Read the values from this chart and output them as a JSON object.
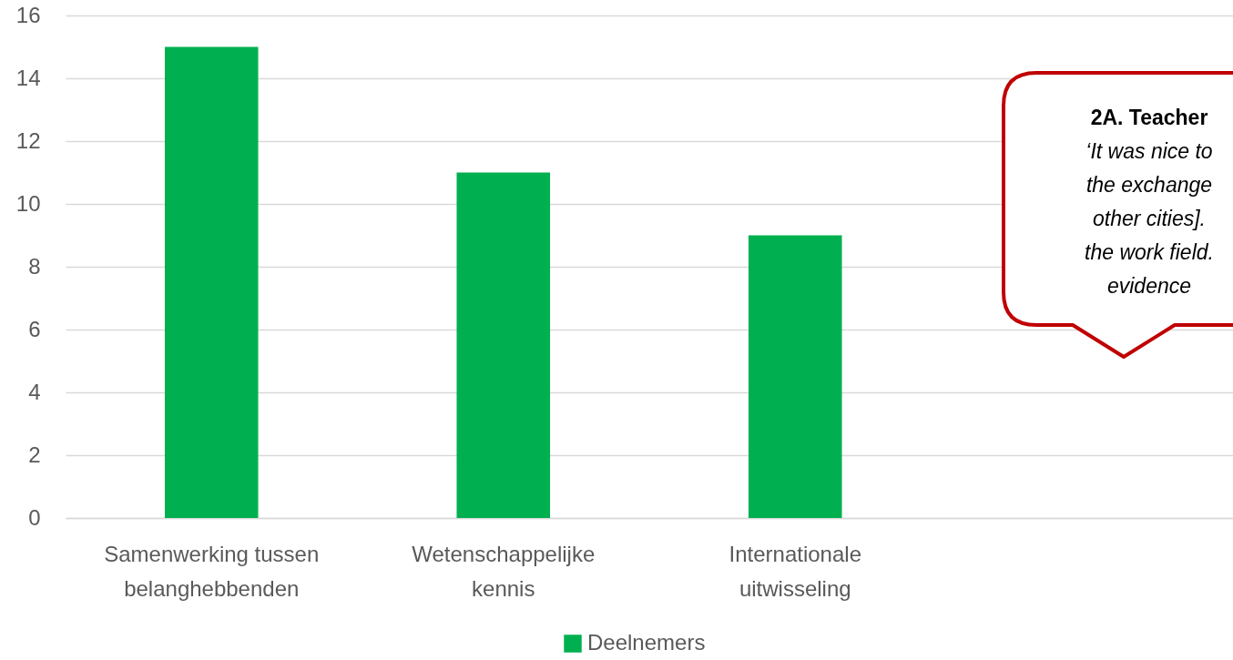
{
  "chart_data": {
    "type": "bar",
    "categories": [
      "Samenwerking tussen belanghebbenden",
      "Wetenschappelijke kennis",
      "Internationale uitwisseling",
      null
    ],
    "series": [
      {
        "name": "Deelnemers",
        "color": "#00b050",
        "values": [
          15,
          11,
          9,
          null
        ]
      }
    ],
    "ylim": [
      0,
      16
    ],
    "yticks": [
      0,
      2,
      4,
      6,
      8,
      10,
      12,
      14,
      16
    ],
    "grid": "y",
    "legend": "bottom",
    "annotations": [
      "2A. Teacher",
      "‘It was nice to",
      "the exchange",
      "other cities].",
      "the work field.",
      "evidence"
    ]
  }
}
